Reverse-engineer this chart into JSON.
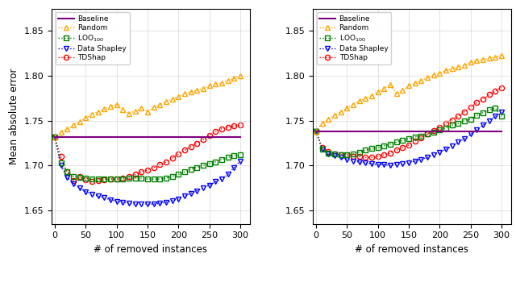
{
  "xlabel": "# of removed instances",
  "ylabel": "Mean absolute error",
  "ylim": [
    1.635,
    1.875
  ],
  "yticks": [
    1.65,
    1.7,
    1.75,
    1.8,
    1.85
  ],
  "xlim": [
    -5,
    315
  ],
  "xticks": [
    0,
    50,
    100,
    150,
    200,
    250,
    300
  ],
  "baseline_color": "#800080",
  "random_color": "#FFA500",
  "loo_color": "#008000",
  "shapley_color": "#0000FF",
  "tdshap_color": "#FF0000",
  "val_x": [
    0,
    10,
    20,
    30,
    40,
    50,
    60,
    70,
    80,
    90,
    100,
    110,
    120,
    130,
    140,
    150,
    160,
    170,
    180,
    190,
    200,
    210,
    220,
    230,
    240,
    250,
    260,
    270,
    280,
    290,
    300
  ],
  "val_baseline": [
    1.732,
    1.732,
    1.732,
    1.732,
    1.732,
    1.732,
    1.732,
    1.732,
    1.732,
    1.732,
    1.732,
    1.732,
    1.732,
    1.732,
    1.732,
    1.732,
    1.732,
    1.732,
    1.732,
    1.732,
    1.732,
    1.732,
    1.732,
    1.732,
    1.732,
    1.732,
    1.732,
    1.732,
    1.732,
    1.732,
    1.732
  ],
  "val_random": [
    1.732,
    1.737,
    1.741,
    1.745,
    1.749,
    1.753,
    1.757,
    1.76,
    1.763,
    1.766,
    1.768,
    1.762,
    1.758,
    1.761,
    1.764,
    1.76,
    1.765,
    1.768,
    1.771,
    1.774,
    1.777,
    1.78,
    1.782,
    1.784,
    1.786,
    1.789,
    1.791,
    1.792,
    1.795,
    1.797,
    1.8
  ],
  "val_loo": [
    1.732,
    1.703,
    1.693,
    1.688,
    1.687,
    1.686,
    1.685,
    1.685,
    1.685,
    1.685,
    1.685,
    1.685,
    1.686,
    1.686,
    1.686,
    1.685,
    1.685,
    1.685,
    1.686,
    1.688,
    1.69,
    1.693,
    1.696,
    1.698,
    1.7,
    1.702,
    1.704,
    1.707,
    1.709,
    1.711,
    1.712
  ],
  "val_shapley": [
    1.732,
    1.7,
    1.687,
    1.68,
    1.675,
    1.671,
    1.668,
    1.666,
    1.664,
    1.662,
    1.66,
    1.659,
    1.658,
    1.657,
    1.657,
    1.657,
    1.657,
    1.658,
    1.659,
    1.661,
    1.663,
    1.666,
    1.669,
    1.672,
    1.675,
    1.678,
    1.682,
    1.685,
    1.69,
    1.698,
    1.705
  ],
  "val_tdshap": [
    1.732,
    1.71,
    1.693,
    1.683,
    1.688,
    1.684,
    1.682,
    1.683,
    1.684,
    1.685,
    1.685,
    1.686,
    1.688,
    1.69,
    1.693,
    1.695,
    1.698,
    1.701,
    1.704,
    1.708,
    1.713,
    1.717,
    1.721,
    1.725,
    1.729,
    1.734,
    1.738,
    1.741,
    1.743,
    1.744,
    1.745
  ],
  "test_x": [
    0,
    10,
    20,
    30,
    40,
    50,
    60,
    70,
    80,
    90,
    100,
    110,
    120,
    130,
    140,
    150,
    160,
    170,
    180,
    190,
    200,
    210,
    220,
    230,
    240,
    250,
    260,
    270,
    280,
    290,
    300
  ],
  "test_baseline": [
    1.738,
    1.738,
    1.738,
    1.738,
    1.738,
    1.738,
    1.738,
    1.738,
    1.738,
    1.738,
    1.738,
    1.738,
    1.738,
    1.738,
    1.738,
    1.738,
    1.738,
    1.738,
    1.738,
    1.738,
    1.738,
    1.738,
    1.738,
    1.738,
    1.738,
    1.738,
    1.738,
    1.738,
    1.738,
    1.738,
    1.738
  ],
  "test_random": [
    1.738,
    1.747,
    1.752,
    1.756,
    1.76,
    1.764,
    1.768,
    1.772,
    1.775,
    1.778,
    1.782,
    1.786,
    1.79,
    1.78,
    1.784,
    1.789,
    1.792,
    1.795,
    1.798,
    1.801,
    1.803,
    1.806,
    1.808,
    1.81,
    1.812,
    1.815,
    1.817,
    1.818,
    1.82,
    1.821,
    1.823
  ],
  "test_loo": [
    1.738,
    1.718,
    1.714,
    1.713,
    1.712,
    1.712,
    1.713,
    1.715,
    1.717,
    1.719,
    1.72,
    1.722,
    1.724,
    1.726,
    1.728,
    1.73,
    1.732,
    1.733,
    1.735,
    1.737,
    1.74,
    1.742,
    1.745,
    1.747,
    1.75,
    1.752,
    1.756,
    1.759,
    1.762,
    1.764,
    1.755
  ],
  "test_shapley": [
    1.738,
    1.718,
    1.713,
    1.711,
    1.709,
    1.707,
    1.705,
    1.704,
    1.703,
    1.702,
    1.701,
    1.701,
    1.7,
    1.701,
    1.702,
    1.703,
    1.705,
    1.707,
    1.709,
    1.712,
    1.715,
    1.718,
    1.722,
    1.726,
    1.73,
    1.735,
    1.74,
    1.745,
    1.75,
    1.755,
    1.76
  ],
  "test_tdshap": [
    1.738,
    1.72,
    1.716,
    1.713,
    1.712,
    1.712,
    1.71,
    1.71,
    1.709,
    1.709,
    1.71,
    1.712,
    1.714,
    1.717,
    1.72,
    1.723,
    1.727,
    1.731,
    1.735,
    1.739,
    1.743,
    1.747,
    1.751,
    1.755,
    1.76,
    1.765,
    1.77,
    1.774,
    1.779,
    1.783,
    1.787
  ]
}
